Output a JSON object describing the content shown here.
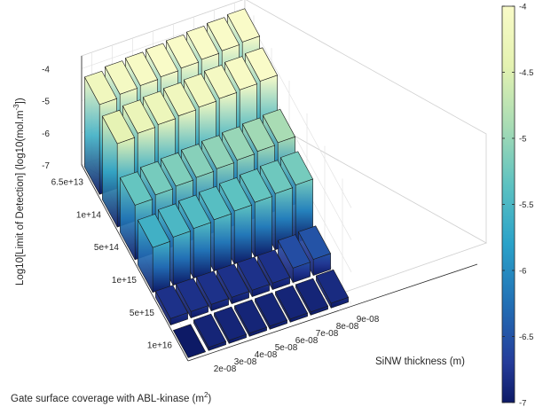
{
  "chart_data": {
    "type": "bar3d",
    "xlabel": "SiNW thickness (m)",
    "ylabel": "Gate surface coverage with ABL-kinase (m",
    "ylabel_sup": "2",
    "ylabel_close": ")",
    "zlabel": "Log10[Limit of Detection] (log10(mol.m",
    "zlabel_sup": "-3",
    "zlabel_close": "])",
    "x_ticks": [
      {
        "value": 2e-08,
        "label": "2e-08"
      },
      {
        "value": 3e-08,
        "label": "3e-08"
      },
      {
        "value": 4e-08,
        "label": "4e-08"
      },
      {
        "value": 5e-08,
        "label": "5e-08"
      },
      {
        "value": 6e-08,
        "label": "6e-08"
      },
      {
        "value": 7e-08,
        "label": "7e-08"
      },
      {
        "value": 8e-08,
        "label": "8e-08"
      },
      {
        "value": 9e-08,
        "label": "9e-08"
      }
    ],
    "y_ticks": [
      {
        "value": 65000000000000.0,
        "label": "6.5e+13"
      },
      {
        "value": 100000000000000.0,
        "label": "1e+14"
      },
      {
        "value": 500000000000000.0,
        "label": "5e+14"
      },
      {
        "value": 1000000000000000.0,
        "label": "1e+15"
      },
      {
        "value": 5000000000000000.0,
        "label": "5e+15"
      },
      {
        "value": 1e+16,
        "label": "1e+16"
      }
    ],
    "z_ticks": [
      -4,
      -5,
      -6,
      -7
    ],
    "zlim": [
      -7,
      -3.6
    ],
    "colorbar": {
      "colormap": "parula-like (yellow to dark blue)",
      "limits": [
        -7,
        -4
      ],
      "ticks": [
        "-4",
        "-4.5",
        "-5",
        "-5.5",
        "-6",
        "-6.5",
        "-7"
      ]
    },
    "grid": true,
    "rows": [
      {
        "coverage": "6.5e+13",
        "values": [
          -4.2,
          -4.1,
          -4.05,
          -4.0,
          -3.95,
          -3.9,
          -3.85,
          -3.8
        ]
      },
      {
        "coverage": "1e+14",
        "values": [
          -4.4,
          -4.3,
          -4.25,
          -4.2,
          -4.15,
          -4.1,
          -4.05,
          -4.0
        ]
      },
      {
        "coverage": "5e+14",
        "values": [
          -5.3,
          -5.2,
          -5.15,
          -5.1,
          -5.05,
          -5.0,
          -4.95,
          -4.9
        ]
      },
      {
        "coverage": "1e+15",
        "values": [
          -5.6,
          -5.5,
          -5.45,
          -5.4,
          -5.35,
          -5.3,
          -5.25,
          -5.2
        ]
      },
      {
        "coverage": "5e+15",
        "values": [
          -6.8,
          -6.8,
          -6.8,
          -6.8,
          -6.8,
          -6.8,
          -6.55,
          -6.5
        ]
      },
      {
        "coverage": "1e+16",
        "values": [
          -7.0,
          -6.9,
          -6.9,
          -6.9,
          -6.9,
          -6.9,
          -6.9,
          -6.85
        ]
      }
    ]
  }
}
